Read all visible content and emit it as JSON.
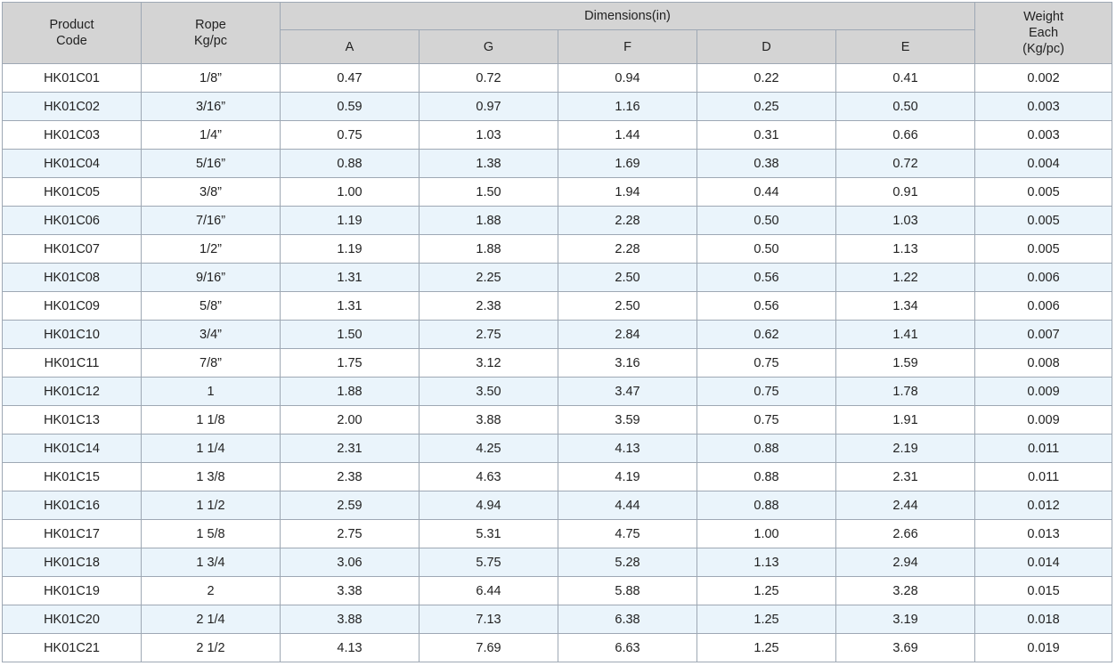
{
  "table": {
    "headers": {
      "product_code": [
        "Product",
        "Code"
      ],
      "rope": [
        "Rope",
        "Kg/pc"
      ],
      "dimensions": "Dimensions(in)",
      "dim_cols": [
        "A",
        "G",
        "F",
        "D",
        "E"
      ],
      "weight": [
        "Weight",
        "Each",
        "(Kg/pc)"
      ]
    },
    "rows": [
      [
        "HK01C01",
        "1/8”",
        "0.47",
        "0.72",
        "0.94",
        "0.22",
        "0.41",
        "0.002"
      ],
      [
        "HK01C02",
        "3/16”",
        "0.59",
        "0.97",
        "1.16",
        "0.25",
        "0.50",
        "0.003"
      ],
      [
        "HK01C03",
        "1/4”",
        "0.75",
        "1.03",
        "1.44",
        "0.31",
        "0.66",
        "0.003"
      ],
      [
        "HK01C04",
        "5/16”",
        "0.88",
        "1.38",
        "1.69",
        "0.38",
        "0.72",
        "0.004"
      ],
      [
        "HK01C05",
        "3/8”",
        "1.00",
        "1.50",
        "1.94",
        "0.44",
        "0.91",
        "0.005"
      ],
      [
        "HK01C06",
        "7/16”",
        "1.19",
        "1.88",
        "2.28",
        "0.50",
        "1.03",
        "0.005"
      ],
      [
        "HK01C07",
        "1/2”",
        "1.19",
        "1.88",
        "2.28",
        "0.50",
        "1.13",
        "0.005"
      ],
      [
        "HK01C08",
        "9/16”",
        "1.31",
        "2.25",
        "2.50",
        "0.56",
        "1.22",
        "0.006"
      ],
      [
        "HK01C09",
        "5/8”",
        "1.31",
        "2.38",
        "2.50",
        "0.56",
        "1.34",
        "0.006"
      ],
      [
        "HK01C10",
        "3/4”",
        "1.50",
        "2.75",
        "2.84",
        "0.62",
        "1.41",
        "0.007"
      ],
      [
        "HK01C11",
        "7/8”",
        "1.75",
        "3.12",
        "3.16",
        "0.75",
        "1.59",
        "0.008"
      ],
      [
        "HK01C12",
        "1",
        "1.88",
        "3.50",
        "3.47",
        "0.75",
        "1.78",
        "0.009"
      ],
      [
        "HK01C13",
        "1 1/8",
        "2.00",
        "3.88",
        "3.59",
        "0.75",
        "1.91",
        "0.009"
      ],
      [
        "HK01C14",
        "1 1/4",
        "2.31",
        "4.25",
        "4.13",
        "0.88",
        "2.19",
        "0.011"
      ],
      [
        "HK01C15",
        "1 3/8",
        "2.38",
        "4.63",
        "4.19",
        "0.88",
        "2.31",
        "0.011"
      ],
      [
        "HK01C16",
        "1 1/2",
        "2.59",
        "4.94",
        "4.44",
        "0.88",
        "2.44",
        "0.012"
      ],
      [
        "HK01C17",
        "1 5/8",
        "2.75",
        "5.31",
        "4.75",
        "1.00",
        "2.66",
        "0.013"
      ],
      [
        "HK01C18",
        "1 3/4",
        "3.06",
        "5.75",
        "5.28",
        "1.13",
        "2.94",
        "0.014"
      ],
      [
        "HK01C19",
        "2",
        "3.38",
        "6.44",
        "5.88",
        "1.25",
        "3.28",
        "0.015"
      ],
      [
        "HK01C20",
        "2 1/4",
        "3.88",
        "7.13",
        "6.38",
        "1.25",
        "3.19",
        "0.018"
      ],
      [
        "HK01C21",
        "2 1/2",
        "4.13",
        "7.69",
        "6.63",
        "1.25",
        "3.69",
        "0.019"
      ]
    ]
  },
  "colors": {
    "header_bg": "#d4d4d4",
    "row_alt_bg": "#eaf4fb",
    "border": "#9ea8b4"
  }
}
